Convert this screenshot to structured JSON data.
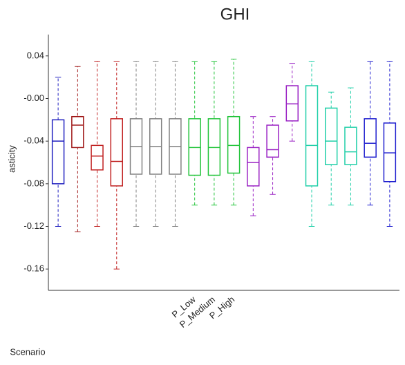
{
  "chart_data": {
    "type": "box",
    "title": "GHI",
    "y_label": "asticity",
    "x_label": "Scenario",
    "categories": [
      null,
      null,
      null,
      null,
      null,
      null,
      null,
      "P_Low",
      "P_Medium",
      "P_High",
      null,
      null,
      null,
      null,
      null,
      null,
      null,
      null
    ],
    "colors": [
      "#1f1fbf",
      "#a01818",
      "#c02020",
      "#c02020",
      "#808080",
      "#808080",
      "#808080",
      "#22c43a",
      "#22c43a",
      "#22c43a",
      "#9a22c4",
      "#9a22c4",
      "#9a22c4",
      "#1fcfa8",
      "#1fcfa8",
      "#1fcfa8",
      "#1f1fcf",
      "#1f1fcf"
    ],
    "min": [
      -0.12,
      -0.125,
      -0.12,
      -0.16,
      -0.12,
      -0.12,
      -0.12,
      -0.1,
      -0.1,
      -0.1,
      -0.11,
      -0.09,
      -0.04,
      -0.12,
      -0.1,
      -0.1,
      -0.1,
      -0.12
    ],
    "q1": [
      -0.08,
      -0.046,
      -0.067,
      -0.082,
      -0.071,
      -0.071,
      -0.071,
      -0.072,
      -0.072,
      -0.07,
      -0.082,
      -0.055,
      -0.021,
      -0.082,
      -0.062,
      -0.062,
      -0.055,
      -0.078
    ],
    "median": [
      -0.04,
      -0.025,
      -0.054,
      -0.059,
      -0.045,
      -0.045,
      -0.045,
      -0.046,
      -0.046,
      -0.044,
      -0.06,
      -0.048,
      -0.005,
      -0.044,
      -0.04,
      -0.05,
      -0.042,
      -0.051
    ],
    "q3": [
      -0.02,
      -0.017,
      -0.044,
      -0.019,
      -0.019,
      -0.019,
      -0.019,
      -0.019,
      -0.019,
      -0.017,
      -0.046,
      -0.025,
      0.012,
      0.012,
      -0.009,
      -0.027,
      -0.019,
      -0.023
    ],
    "max": [
      0.02,
      0.03,
      0.035,
      0.035,
      0.035,
      0.035,
      0.035,
      0.035,
      0.035,
      0.037,
      -0.017,
      -0.017,
      0.033,
      0.035,
      0.006,
      0.01,
      0.035,
      0.035
    ],
    "ylim": [
      -0.18,
      0.06
    ],
    "yticks": [
      0.04,
      {
        "value": 0,
        "label": "-0.00"
      },
      -0.04,
      -0.08,
      -0.12,
      -0.16
    ],
    "grid": false
  }
}
